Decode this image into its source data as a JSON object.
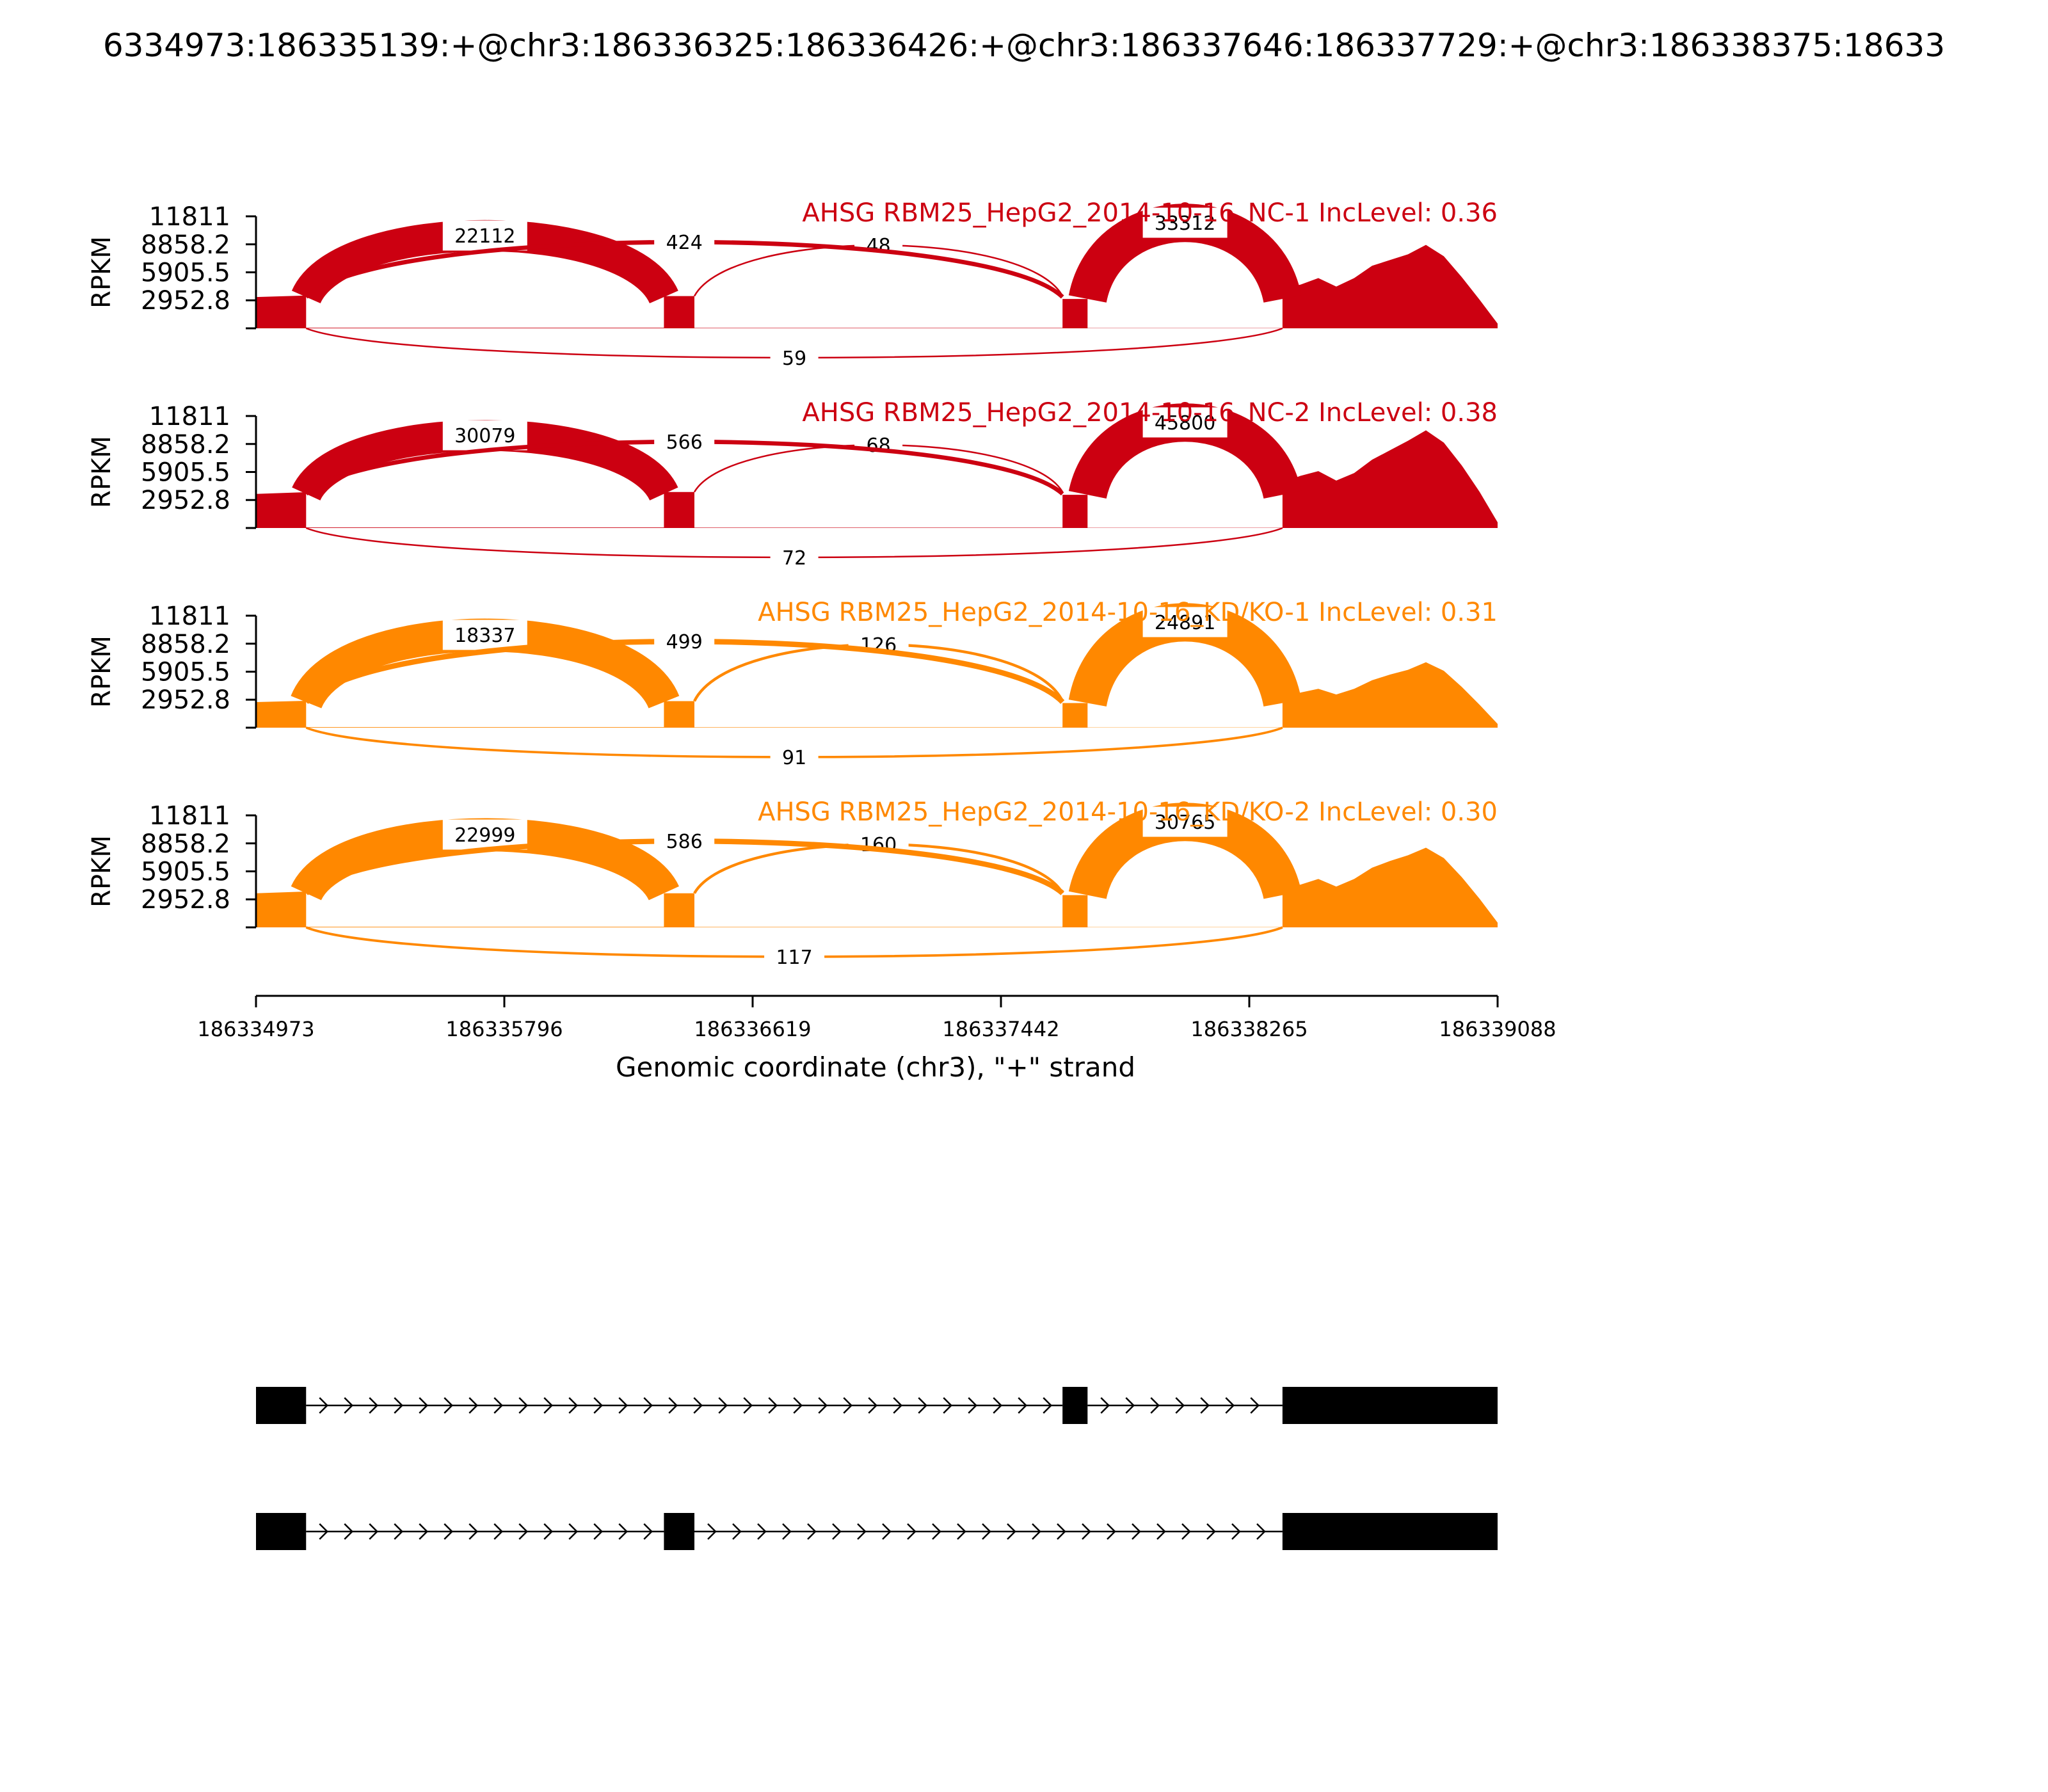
{
  "figure": {
    "title": "6334973:186335139:+@chr3:186336325:186336426:+@chr3:186337646:186337729:+@chr3:186338375:18633",
    "y_axis_label": "RPKM",
    "x_axis_label": "Genomic coordinate (chr3), \"+\" strand",
    "x_ticks": [
      "186334973",
      "186335796",
      "186336619",
      "186337442",
      "186338265",
      "186339088"
    ]
  },
  "chart_data": {
    "type": "area",
    "description_kind": "sashimi",
    "xlim": [
      186334973,
      186339088
    ],
    "ylim": [
      0,
      11811
    ],
    "y_ticks": [
      "2952.8",
      "5905.5",
      "8858.2",
      "11811"
    ],
    "y_tick_values": [
      2952.8,
      5905.5,
      8858.2,
      11811
    ],
    "exons": [
      {
        "start": 186334973,
        "end": 186335139
      },
      {
        "start": 186336325,
        "end": 186336426
      },
      {
        "start": 186337646,
        "end": 186337729
      },
      {
        "start": 186338375,
        "end": 186339088
      }
    ],
    "panels": [
      {
        "title": "AHSG RBM25_HepG2_2014-10-16_NC-1 IncLevel: 0.36",
        "color": "#cc0011",
        "coverage": {
          "exon1": 3300,
          "exon2": 3400,
          "exon3": 3100,
          "exon4": [
            4200,
            4600,
            5300,
            4400,
            5300,
            6600,
            7200,
            7800,
            8800,
            7600,
            5400,
            3000,
            500
          ]
        },
        "junctions": [
          {
            "label": "22112",
            "value": 22112,
            "above": true
          },
          {
            "label": "48",
            "value": 48,
            "above": true
          },
          {
            "label": "424",
            "value": 424,
            "above": true
          },
          {
            "label": "33312",
            "value": 33312,
            "above": true
          },
          {
            "label": "59",
            "value": 59,
            "above": false
          }
        ]
      },
      {
        "title": "AHSG RBM25_HepG2_2014-10-16_NC-2 IncLevel: 0.38",
        "color": "#cc0011",
        "coverage": {
          "exon1": 3600,
          "exon2": 3800,
          "exon3": 3500,
          "exon4": [
            4800,
            5500,
            6000,
            5000,
            5800,
            7200,
            8200,
            9200,
            10300,
            9000,
            6600,
            3800,
            600
          ]
        },
        "junctions": [
          {
            "label": "30079",
            "value": 30079,
            "above": true
          },
          {
            "label": "68",
            "value": 68,
            "above": true
          },
          {
            "label": "566",
            "value": 566,
            "above": true
          },
          {
            "label": "45800",
            "value": 45800,
            "above": true
          },
          {
            "label": "72",
            "value": 72,
            "above": false
          }
        ]
      },
      {
        "title": "AHSG RBM25_HepG2_2014-10-16_KD/KO-1 IncLevel: 0.31",
        "color": "#ff8800",
        "coverage": {
          "exon1": 2700,
          "exon2": 2800,
          "exon3": 2600,
          "exon4": [
            3400,
            3700,
            4100,
            3500,
            4100,
            5000,
            5600,
            6100,
            6900,
            6000,
            4300,
            2400,
            400
          ]
        },
        "junctions": [
          {
            "label": "18337",
            "value": 18337,
            "above": true
          },
          {
            "label": "126",
            "value": 126,
            "above": true
          },
          {
            "label": "499",
            "value": 499,
            "above": true
          },
          {
            "label": "24891",
            "value": 24891,
            "above": true
          },
          {
            "label": "91",
            "value": 91,
            "above": false
          }
        ]
      },
      {
        "title": "AHSG RBM25_HepG2_2014-10-16_KD/KO-2 IncLevel: 0.30",
        "color": "#ff8800",
        "coverage": {
          "exon1": 3600,
          "exon2": 3600,
          "exon3": 3400,
          "exon4": [
            4100,
            4500,
            5100,
            4300,
            5100,
            6300,
            7000,
            7600,
            8400,
            7300,
            5300,
            3000,
            500
          ]
        },
        "junctions": [
          {
            "label": "22999",
            "value": 22999,
            "above": true
          },
          {
            "label": "160",
            "value": 160,
            "above": true
          },
          {
            "label": "586",
            "value": 586,
            "above": true
          },
          {
            "label": "30765",
            "value": 30765,
            "above": true
          },
          {
            "label": "117",
            "value": 117,
            "above": false
          }
        ]
      }
    ],
    "isoforms": [
      {
        "exons": [
          [
            186334973,
            186335139
          ],
          [
            186337646,
            186337729
          ],
          [
            186338375,
            186339088
          ]
        ]
      },
      {
        "exons": [
          [
            186334973,
            186335139
          ],
          [
            186336325,
            186336426
          ],
          [
            186338375,
            186339088
          ]
        ]
      }
    ]
  }
}
